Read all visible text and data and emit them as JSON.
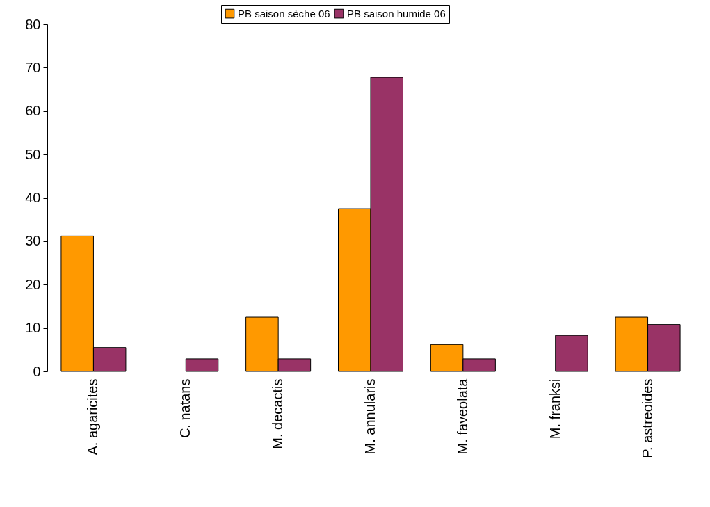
{
  "chart_data": {
    "type": "bar",
    "categories": [
      "A. agaricites",
      "C. natans",
      "M. decactis",
      "M. annularis",
      "M. faveolata",
      "M. franksi",
      "P. astreoides"
    ],
    "series": [
      {
        "name": "PB saison sèche 06",
        "color": "#ff9900",
        "values": [
          31.2,
          null,
          12.5,
          37.5,
          6.2,
          null,
          12.5
        ]
      },
      {
        "name": "PB saison humide 06",
        "color": "#993366",
        "values": [
          5.5,
          2.9,
          2.9,
          67.8,
          2.9,
          8.3,
          10.8
        ]
      }
    ],
    "ylim": [
      0,
      80
    ],
    "yticks": [
      0,
      10,
      20,
      30,
      40,
      50,
      60,
      70,
      80
    ],
    "grid": false,
    "legend": "top"
  }
}
